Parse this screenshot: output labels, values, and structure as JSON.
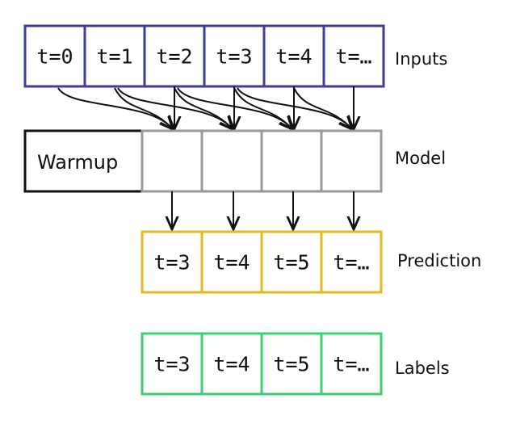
{
  "inputs": {
    "label": "Inputs",
    "color": "#3d3d9e",
    "cells": [
      "t=0",
      "t=1",
      "t=2",
      "t=3",
      "t=4",
      "t=…"
    ]
  },
  "model": {
    "label": "Model",
    "color": "#9a9a9a",
    "warmup_label": "Warmup",
    "step_count": 4
  },
  "prediction": {
    "label": "Prediction",
    "color": "#e6b820",
    "cells": [
      "t=3",
      "t=4",
      "t=5",
      "t=…"
    ]
  },
  "labels": {
    "label": "Labels",
    "color": "#3ecf72",
    "cells": [
      "t=3",
      "t=4",
      "t=5",
      "t=…"
    ]
  }
}
